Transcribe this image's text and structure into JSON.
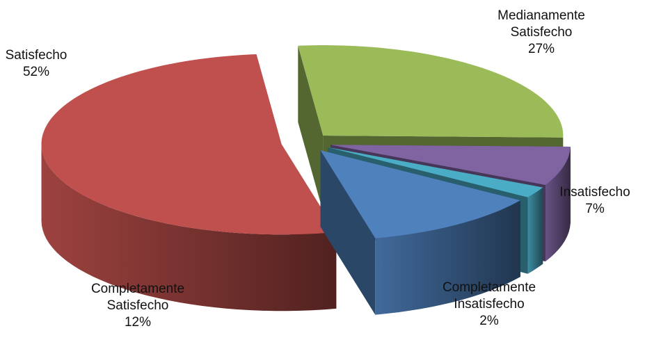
{
  "chart_data": {
    "type": "pie",
    "style": "3d-exploded",
    "title": "",
    "legend": "none",
    "slices": [
      {
        "name": "Medianamente Satisfecho",
        "value": 27,
        "label_lines": [
          "Medianamente",
          "Satisfecho"
        ],
        "value_label": "27%",
        "color": "#9BBB59"
      },
      {
        "name": "Insatisfecho",
        "value": 7,
        "label_lines": [
          "Insatisfecho"
        ],
        "value_label": "7%",
        "color": "#8064A2"
      },
      {
        "name": "Completamente Insatisfecho",
        "value": 2,
        "label_lines": [
          "Completamente",
          "Insatisfecho"
        ],
        "value_label": "2%",
        "color": "#4BACC6"
      },
      {
        "name": "Completamente Satisfecho",
        "value": 12,
        "label_lines": [
          "Completamente",
          "Satisfecho"
        ],
        "value_label": "12%",
        "color": "#4F81BD"
      },
      {
        "name": "Satisfecho",
        "value": 52,
        "label_lines": [
          "Satisfecho"
        ],
        "value_label": "52%",
        "color": "#C0504D"
      }
    ]
  }
}
